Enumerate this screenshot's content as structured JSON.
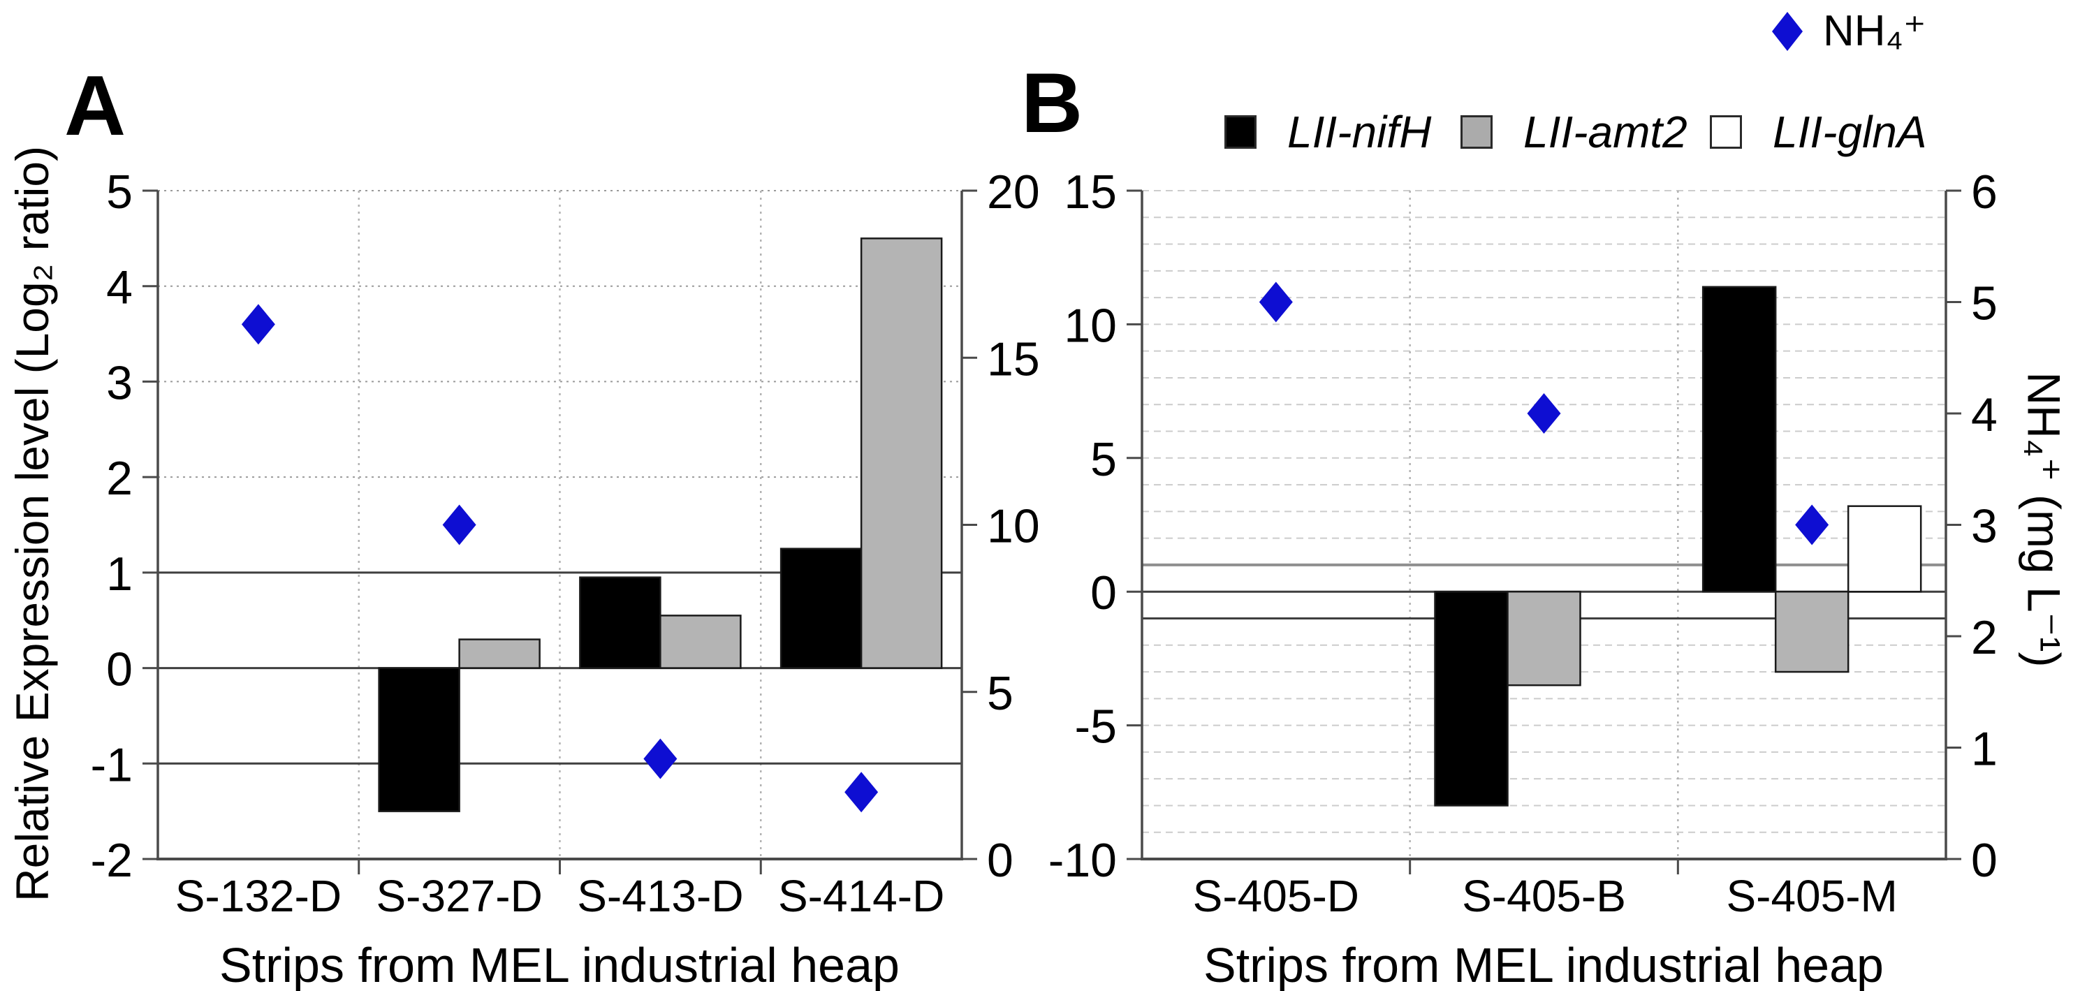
{
  "figure": {
    "panel_a_letter": "A",
    "panel_b_letter": "B",
    "left_axis_title": "Relative Expression level (Log₂ ratio)",
    "right_axis_title": "NH₄⁺ (mg L⁻¹)",
    "x_axis_title_a": "Strips from MEL industrial heap",
    "x_axis_title_b": "Strips from MEL industrial heap"
  },
  "legend": {
    "nh4_label": "NH₄⁺",
    "items": [
      {
        "label": "LII-nifH",
        "color": "#000000"
      },
      {
        "label": "LII-amt2",
        "color": "#ababab"
      },
      {
        "label": "LII-glnA",
        "color": "#ffffff"
      }
    ]
  },
  "colors": {
    "diamond_blue": "#0e0ed2",
    "bar_black": "#000000",
    "bar_gray": "#b4b4b4",
    "bar_white": "#ffffff",
    "bar_border": "#1a1a1a",
    "frame": "#4a4a4a",
    "solid_refline": "#3f3f3f",
    "light_refline": "#8f8f8f",
    "minor_grid": "#cccccc",
    "dotted_grid": "#9a9a9a",
    "separator": "#b0b0b0"
  },
  "chart_data": [
    {
      "type": "bar",
      "panel": "A",
      "categories": [
        "S-132-D",
        "S-327-D",
        "S-413-D",
        "S-414-D"
      ],
      "series": [
        {
          "name": "LII-nifH",
          "values": [
            null,
            -1.5,
            0.95,
            1.25
          ]
        },
        {
          "name": "LII-amt2",
          "values": [
            null,
            0.3,
            0.55,
            4.5
          ]
        },
        {
          "name": "LII-glnA",
          "values": [
            null,
            null,
            null,
            null
          ]
        }
      ],
      "nh4_series": {
        "name": "NH₄⁺",
        "values": [
          16,
          10,
          3,
          2
        ],
        "unit": "mg L⁻¹",
        "axis": "right"
      },
      "left_axis": {
        "label": "Relative Expression level (Log₂ ratio)",
        "min": -2,
        "max": 5,
        "ticks": [
          5,
          4,
          3,
          2,
          1,
          0,
          -1,
          -2
        ]
      },
      "right_axis": {
        "label": "NH₄⁺ (mg L⁻¹)",
        "min": 0,
        "max": 20,
        "ticks": [
          20,
          15,
          10,
          5,
          0
        ]
      },
      "xlabel": "Strips from MEL industrial heap",
      "reference_lines": [
        1,
        0,
        -1
      ],
      "dotted_gridlines": [
        5,
        4,
        3,
        2
      ],
      "minor_gridlines": false,
      "legend_position": "top"
    },
    {
      "type": "bar",
      "panel": "B",
      "categories": [
        "S-405-D",
        "S-405-B",
        "S-405-M"
      ],
      "series": [
        {
          "name": "LII-nifH",
          "values": [
            null,
            -8.0,
            11.4
          ]
        },
        {
          "name": "LII-amt2",
          "values": [
            null,
            -3.5,
            -3.0
          ]
        },
        {
          "name": "LII-glnA",
          "values": [
            null,
            null,
            3.2
          ]
        }
      ],
      "nh4_series": {
        "name": "NH₄⁺",
        "values": [
          5.0,
          4.0,
          3.0
        ],
        "unit": "mg L⁻¹",
        "axis": "right"
      },
      "left_axis": {
        "label": "Relative Expression level (Log₂ ratio)",
        "min": -10,
        "max": 15,
        "ticks": [
          15,
          10,
          5,
          0,
          -5,
          -10
        ]
      },
      "right_axis": {
        "label": "NH₄⁺ (mg L⁻¹)",
        "min": 0,
        "max": 6,
        "ticks": [
          6,
          5,
          4,
          3,
          2,
          1,
          0
        ]
      },
      "xlabel": "Strips from MEL industrial heap",
      "reference_lines": [
        1,
        0,
        -1
      ],
      "dotted_gridlines": [],
      "minor_gridlines": true,
      "legend_position": "top"
    }
  ]
}
